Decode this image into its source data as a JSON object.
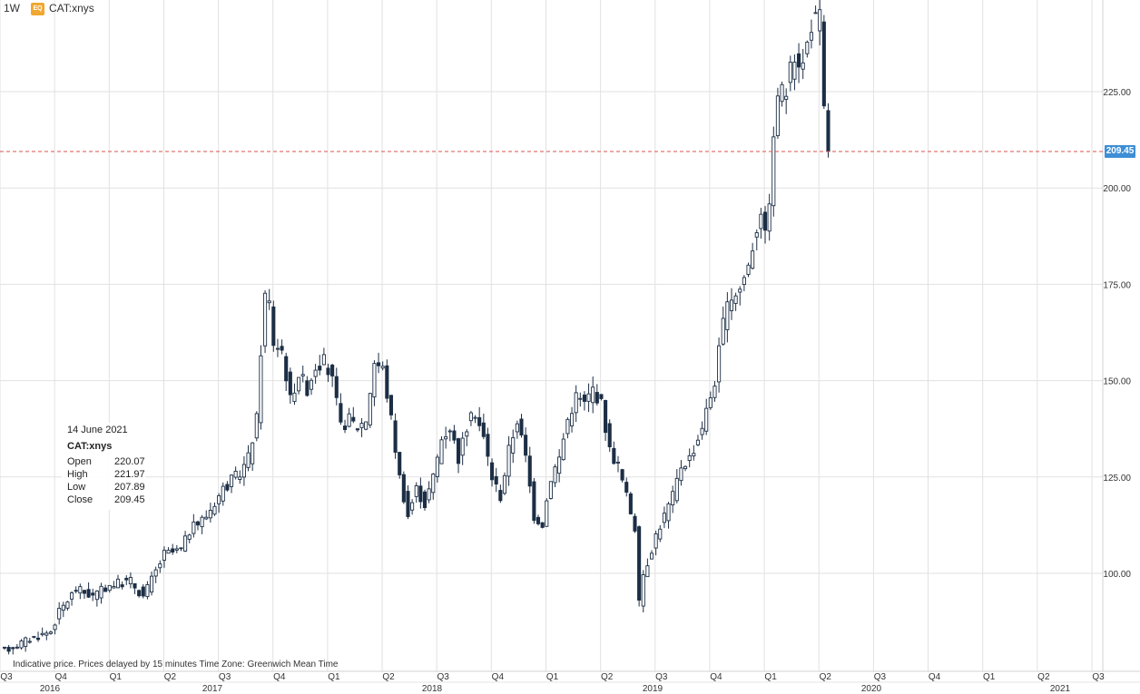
{
  "header": {
    "interval": "1W",
    "badge": "EQ",
    "symbol": "CAT:xnys"
  },
  "tooltip": {
    "date": "14 June 2021",
    "symbol": "CAT:xnys",
    "open_label": "Open",
    "open": "220.07",
    "high_label": "High",
    "high": "221.97",
    "low_label": "Low",
    "low": "207.89",
    "close_label": "Close",
    "close": "209.45"
  },
  "disclaimer": "Indicative price. Prices delayed by 15 minutes    Time Zone: Greenwich Mean Time",
  "price_badge": "209.45",
  "colors": {
    "candle": "#1c2e45",
    "grid": "#e1e1e1",
    "current_line": "#d9534f",
    "badge": "#3d8fd6",
    "eq_badge": "#f0a830"
  },
  "chart_data": {
    "type": "candlestick",
    "interval": "weekly",
    "ylim": [
      78,
      250
    ],
    "y_ticks": [
      "100.00",
      "125.00",
      "150.00",
      "175.00",
      "200.00",
      "225.00"
    ],
    "current_price": 209.45,
    "quarter_labels": [
      "Q3",
      "Q4",
      "Q1",
      "Q2",
      "Q3",
      "Q4",
      "Q1",
      "Q2",
      "Q3",
      "Q4",
      "Q1",
      "Q2",
      "Q3",
      "Q4",
      "Q1",
      "Q2",
      "Q3",
      "Q4",
      "Q1",
      "Q2",
      "Q3"
    ],
    "year_labels": [
      "2016",
      "2017",
      "2018",
      "2019",
      "2020",
      "2021"
    ],
    "close_path": [
      [
        0,
        80
      ],
      [
        6,
        83
      ],
      [
        11,
        85
      ],
      [
        13,
        90
      ],
      [
        17,
        96
      ],
      [
        21,
        94
      ],
      [
        25,
        97
      ],
      [
        30,
        98
      ],
      [
        33,
        94
      ],
      [
        38,
        105
      ],
      [
        42,
        106
      ],
      [
        44,
        111
      ],
      [
        48,
        115
      ],
      [
        52,
        122
      ],
      [
        56,
        126
      ],
      [
        58,
        130
      ],
      [
        60,
        140
      ],
      [
        61,
        158
      ],
      [
        62,
        172
      ],
      [
        63,
        170
      ],
      [
        64,
        160
      ],
      [
        66,
        158
      ],
      [
        68,
        145
      ],
      [
        70,
        152
      ],
      [
        72,
        148
      ],
      [
        74,
        154
      ],
      [
        76,
        155
      ],
      [
        78,
        150
      ],
      [
        80,
        138
      ],
      [
        82,
        140
      ],
      [
        84,
        138
      ],
      [
        86,
        140
      ],
      [
        88,
        155
      ],
      [
        90,
        153
      ],
      [
        92,
        140
      ],
      [
        94,
        125
      ],
      [
        96,
        115
      ],
      [
        98,
        122
      ],
      [
        100,
        118
      ],
      [
        102,
        125
      ],
      [
        104,
        135
      ],
      [
        106,
        138
      ],
      [
        108,
        130
      ],
      [
        110,
        138
      ],
      [
        112,
        142
      ],
      [
        114,
        135
      ],
      [
        116,
        125
      ],
      [
        118,
        120
      ],
      [
        120,
        132
      ],
      [
        122,
        140
      ],
      [
        124,
        130
      ],
      [
        126,
        115
      ],
      [
        128,
        113
      ],
      [
        130,
        125
      ],
      [
        132,
        130
      ],
      [
        134,
        140
      ],
      [
        136,
        146
      ],
      [
        138,
        144
      ],
      [
        140,
        148
      ],
      [
        142,
        144
      ],
      [
        144,
        132
      ],
      [
        146,
        128
      ],
      [
        148,
        120
      ],
      [
        150,
        112
      ],
      [
        151,
        92
      ],
      [
        152,
        100
      ],
      [
        153,
        103
      ],
      [
        155,
        110
      ],
      [
        157,
        115
      ],
      [
        159,
        120
      ],
      [
        161,
        128
      ],
      [
        163,
        130
      ],
      [
        165,
        135
      ],
      [
        167,
        142
      ],
      [
        169,
        150
      ],
      [
        171,
        165
      ],
      [
        173,
        172
      ],
      [
        175,
        174
      ],
      [
        177,
        180
      ],
      [
        178,
        185
      ],
      [
        180,
        195
      ],
      [
        181,
        187
      ],
      [
        182,
        198
      ],
      [
        184,
        225
      ],
      [
        186,
        225
      ],
      [
        188,
        235
      ],
      [
        190,
        232
      ],
      [
        192,
        243
      ],
      [
        194,
        244
      ],
      [
        195,
        220
      ],
      [
        196,
        209
      ]
    ],
    "last_candle": {
      "date": "14 June 2021",
      "open": 220.07,
      "high": 221.97,
      "low": 207.89,
      "close": 209.45
    }
  }
}
